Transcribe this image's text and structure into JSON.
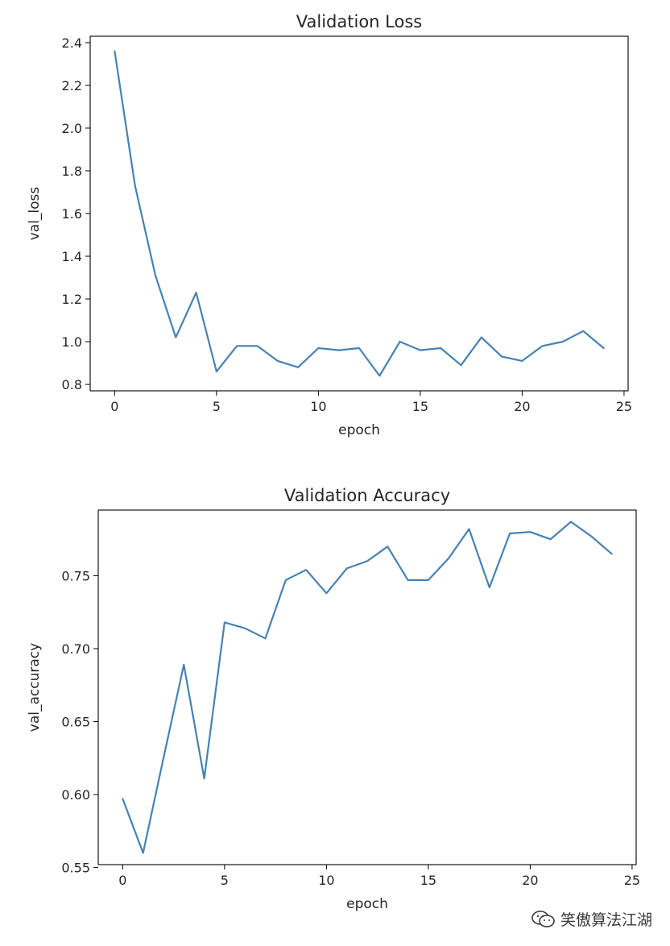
{
  "watermark": {
    "text": "笑傲算法江湖",
    "icon": "wechat-icon",
    "color": "#3a3a3a"
  },
  "chart_data": [
    {
      "type": "line",
      "title": "Validation Loss",
      "xlabel": "epoch",
      "ylabel": "val_loss",
      "xlim": [
        -1.2,
        25.2
      ],
      "ylim": [
        0.77,
        2.43
      ],
      "xticks": [
        0,
        5,
        10,
        15,
        20,
        25
      ],
      "yticks": [
        0.8,
        1.0,
        1.2,
        1.4,
        1.6,
        1.8,
        2.0,
        2.2,
        2.4
      ],
      "ytick_labels": [
        "0.8",
        "1.0",
        "1.2",
        "1.4",
        "1.6",
        "1.8",
        "2.0",
        "2.2",
        "2.4"
      ],
      "grid": false,
      "color": "#4682b4",
      "series": [
        {
          "x": [
            0,
            1,
            2,
            3,
            4,
            5,
            6,
            7,
            8,
            9,
            10,
            11,
            12,
            13,
            14,
            15,
            16,
            17,
            18,
            19,
            20,
            21,
            22,
            23,
            24
          ],
          "values": [
            2.36,
            1.73,
            1.31,
            1.02,
            1.23,
            0.86,
            0.98,
            0.98,
            0.91,
            0.88,
            0.97,
            0.96,
            0.97,
            0.84,
            1.0,
            0.96,
            0.97,
            0.89,
            1.02,
            0.93,
            0.91,
            0.98,
            1.0,
            1.05,
            0.97
          ]
        }
      ]
    },
    {
      "type": "line",
      "title": "Validation Accuracy",
      "xlabel": "epoch",
      "ylabel": "val_accuracy",
      "xlim": [
        -1.2,
        25.2
      ],
      "ylim": [
        0.552,
        0.795
      ],
      "xticks": [
        0,
        5,
        10,
        15,
        20,
        25
      ],
      "yticks": [
        0.55,
        0.6,
        0.65,
        0.7,
        0.75
      ],
      "ytick_labels": [
        "0.55",
        "0.60",
        "0.65",
        "0.70",
        "0.75"
      ],
      "grid": false,
      "color": "#4682b4",
      "series": [
        {
          "x": [
            0,
            1,
            2,
            3,
            4,
            5,
            6,
            7,
            8,
            9,
            10,
            11,
            12,
            13,
            14,
            15,
            16,
            17,
            18,
            19,
            20,
            21,
            22,
            23,
            24
          ],
          "values": [
            0.597,
            0.56,
            0.625,
            0.689,
            0.611,
            0.718,
            0.714,
            0.707,
            0.747,
            0.754,
            0.738,
            0.755,
            0.76,
            0.77,
            0.747,
            0.747,
            0.762,
            0.782,
            0.742,
            0.779,
            0.78,
            0.775,
            0.787,
            0.777,
            0.765
          ]
        }
      ]
    }
  ]
}
